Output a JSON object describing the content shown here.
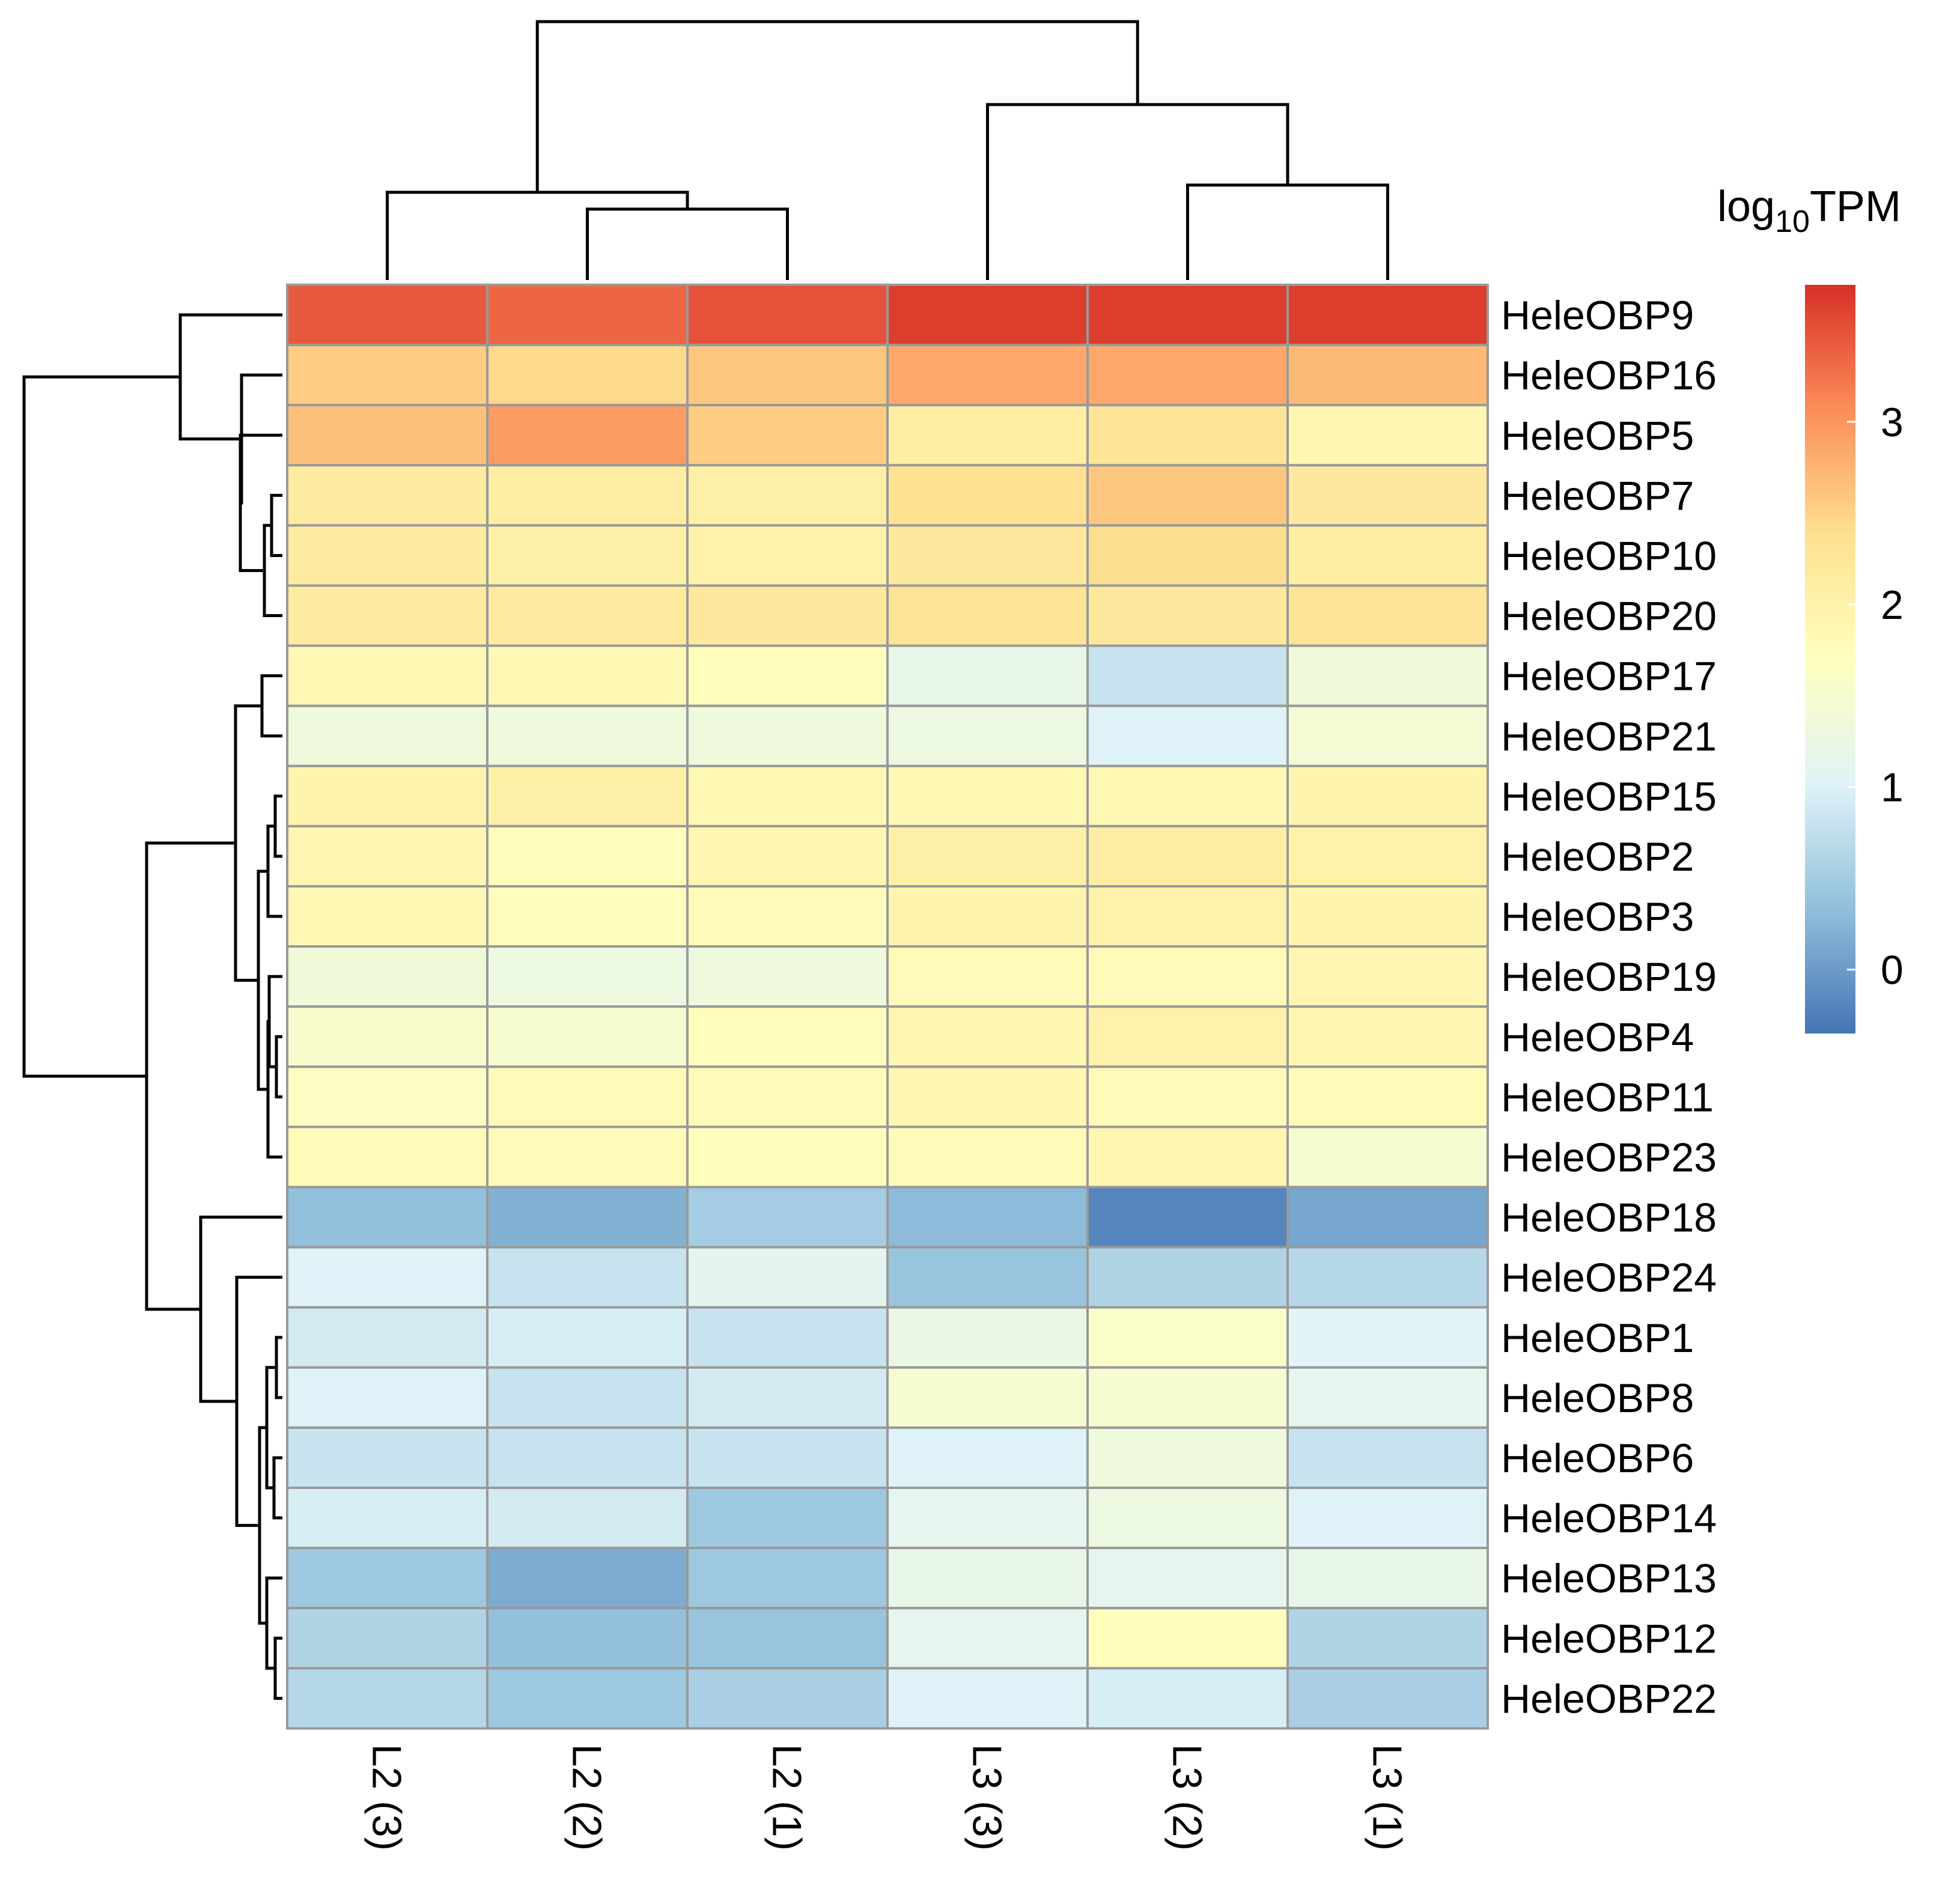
{
  "chart_data": {
    "type": "heatmap",
    "title": "",
    "legend": {
      "title_base": "log",
      "title_subscript": "10",
      "title_suffix": "TPM",
      "ticks": [
        0,
        1,
        2,
        3
      ],
      "range": [
        -0.35,
        3.75
      ],
      "placement": "right"
    },
    "colors": [
      "#4575B4",
      "#91BFDB",
      "#E0F3F8",
      "#FFFFBF",
      "#FEE090",
      "#FC8D59",
      "#D73027"
    ],
    "grid_color": "#999999",
    "dendrogram_color": "#000000",
    "columns": [
      "L2 (3)",
      "L2 (2)",
      "L2 (1)",
      "L3 (3)",
      "L3 (2)",
      "L3 (1)"
    ],
    "rows": [
      "HeleOBP9",
      "HeleOBP16",
      "HeleOBP5",
      "HeleOBP7",
      "HeleOBP10",
      "HeleOBP20",
      "HeleOBP17",
      "HeleOBP21",
      "HeleOBP15",
      "HeleOBP2",
      "HeleOBP3",
      "HeleOBP19",
      "HeleOBP4",
      "HeleOBP11",
      "HeleOBP23",
      "HeleOBP18",
      "HeleOBP24",
      "HeleOBP1",
      "HeleOBP8",
      "HeleOBP6",
      "HeleOBP14",
      "HeleOBP13",
      "HeleOBP12",
      "HeleOBP22"
    ],
    "values": [
      [
        3.45,
        3.35,
        3.5,
        3.65,
        3.65,
        3.65
      ],
      [
        2.55,
        2.45,
        2.6,
        2.85,
        2.85,
        2.7
      ],
      [
        2.65,
        2.95,
        2.55,
        2.1,
        2.3,
        1.9
      ],
      [
        2.15,
        2.1,
        2.05,
        2.35,
        2.6,
        2.2
      ],
      [
        2.15,
        2.05,
        2.0,
        2.2,
        2.4,
        2.1
      ],
      [
        2.15,
        2.15,
        2.2,
        2.3,
        2.2,
        2.3
      ],
      [
        1.85,
        1.85,
        1.75,
        1.2,
        0.8,
        1.4
      ],
      [
        1.35,
        1.35,
        1.35,
        1.3,
        1.0,
        1.45
      ],
      [
        1.95,
        2.05,
        1.85,
        1.85,
        1.85,
        1.95
      ],
      [
        1.9,
        1.75,
        1.9,
        2.05,
        2.1,
        2.0
      ],
      [
        1.85,
        1.75,
        1.8,
        1.95,
        2.0,
        1.95
      ],
      [
        1.4,
        1.3,
        1.35,
        1.8,
        1.8,
        1.9
      ],
      [
        1.55,
        1.5,
        1.75,
        1.9,
        2.0,
        1.9
      ],
      [
        1.65,
        1.8,
        1.8,
        1.9,
        1.8,
        1.8
      ],
      [
        1.8,
        1.8,
        1.75,
        1.8,
        1.9,
        1.5
      ],
      [
        0.35,
        0.2,
        0.5,
        0.3,
        -0.2,
        0.1
      ],
      [
        1.0,
        0.8,
        1.1,
        0.4,
        0.6,
        0.65
      ],
      [
        0.9,
        0.95,
        0.8,
        1.25,
        1.6,
        1.05
      ],
      [
        1.0,
        0.8,
        0.9,
        1.5,
        1.5,
        1.15
      ],
      [
        0.8,
        0.8,
        0.8,
        1.0,
        1.35,
        0.8
      ],
      [
        0.95,
        0.9,
        0.45,
        1.15,
        1.3,
        1.0
      ],
      [
        0.45,
        0.15,
        0.45,
        1.2,
        1.15,
        1.2
      ],
      [
        0.6,
        0.35,
        0.4,
        1.15,
        1.75,
        0.6
      ],
      [
        0.65,
        0.45,
        0.55,
        1.0,
        0.95,
        0.55
      ]
    ]
  }
}
